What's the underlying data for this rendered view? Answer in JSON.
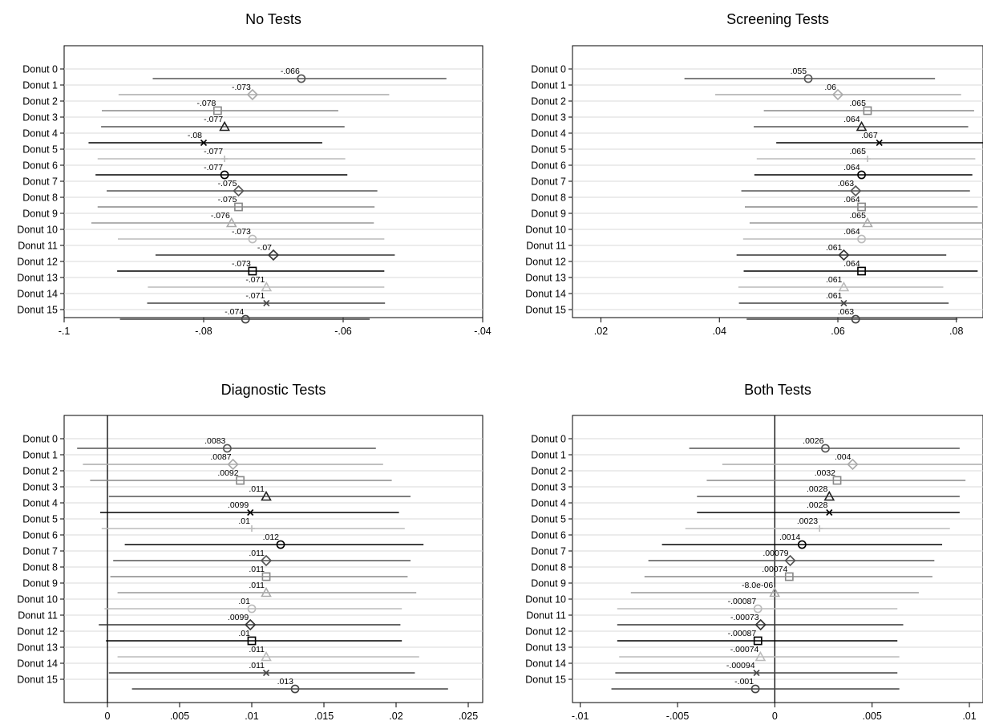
{
  "chart_data": [
    {
      "type": "scatter",
      "title": "No Tests",
      "categories": [
        "Donut 0",
        "Donut 1",
        "Donut 2",
        "Donut 3",
        "Donut 4",
        "Donut 5",
        "Donut 6",
        "Donut 7",
        "Donut 8",
        "Donut 9",
        "Donut 10",
        "Donut 11",
        "Donut 12",
        "Donut 13",
        "Donut 14",
        "Donut 15"
      ],
      "estimates": [
        -0.066,
        -0.073,
        -0.078,
        -0.077,
        -0.08,
        -0.077,
        -0.077,
        -0.075,
        -0.075,
        -0.076,
        -0.073,
        -0.07,
        -0.073,
        -0.071,
        -0.071,
        -0.074
      ],
      "labels": [
        "-.066",
        "-.073",
        "-.078",
        "-.077",
        "-.08",
        "-.077",
        "-.077",
        "-.075",
        "-.075",
        "-.076",
        "-.073",
        "-.07",
        "-.073",
        "-.071",
        "-.071",
        "-.074"
      ],
      "ci_low": [
        -0.0873,
        -0.0922,
        -0.0946,
        -0.0947,
        -0.0965,
        -0.0952,
        -0.0955,
        -0.0939,
        -0.0952,
        -0.0961,
        -0.0923,
        -0.0869,
        -0.0924,
        -0.088,
        -0.0881,
        -0.092
      ],
      "ci_high": [
        -0.0452,
        -0.0534,
        -0.0607,
        -0.0598,
        -0.063,
        -0.0597,
        -0.0594,
        -0.0551,
        -0.0555,
        -0.0556,
        -0.0541,
        -0.0526,
        -0.0541,
        -0.0541,
        -0.054,
        -0.0562
      ],
      "xlim": [
        -0.1,
        -0.04
      ],
      "xticks": [
        -0.1,
        -0.08,
        -0.06,
        -0.04
      ],
      "xtick_labels": [
        "-.1",
        "-.08",
        "-.06",
        "-.04"
      ],
      "zero_line": false
    },
    {
      "type": "scatter",
      "title": "Screening Tests",
      "categories": [
        "Donut 0",
        "Donut 1",
        "Donut 2",
        "Donut 3",
        "Donut 4",
        "Donut 5",
        "Donut 6",
        "Donut 7",
        "Donut 8",
        "Donut 9",
        "Donut 10",
        "Donut 11",
        "Donut 12",
        "Donut 13",
        "Donut 14",
        "Donut 15"
      ],
      "estimates": [
        0.055,
        0.06,
        0.065,
        0.064,
        0.067,
        0.065,
        0.064,
        0.063,
        0.064,
        0.065,
        0.064,
        0.061,
        0.064,
        0.061,
        0.061,
        0.063
      ],
      "labels": [
        ".055",
        ".06",
        ".065",
        ".064",
        ".067",
        ".065",
        ".064",
        ".063",
        ".064",
        ".065",
        ".064",
        ".061",
        ".064",
        ".061",
        ".061",
        ".063"
      ],
      "ci_low": [
        0.0341,
        0.0393,
        0.0475,
        0.0458,
        0.0496,
        0.0463,
        0.0459,
        0.0437,
        0.0443,
        0.0451,
        0.044,
        0.0429,
        0.0441,
        0.0432,
        0.0433,
        0.0446
      ],
      "ci_high": [
        0.0764,
        0.0808,
        0.083,
        0.082,
        0.0845,
        0.0832,
        0.0827,
        0.0823,
        0.0836,
        0.0845,
        0.0845,
        0.0783,
        0.0836,
        0.0778,
        0.0787,
        0.0802
      ],
      "xlim": [
        0.0152,
        0.0845
      ],
      "xticks": [
        0.02,
        0.04,
        0.06,
        0.08
      ],
      "xtick_labels": [
        ".02",
        ".04",
        ".06",
        ".08"
      ],
      "zero_line": false
    },
    {
      "type": "scatter",
      "title": "Diagnostic Tests",
      "categories": [
        "Donut 0",
        "Donut 1",
        "Donut 2",
        "Donut 3",
        "Donut 4",
        "Donut 5",
        "Donut 6",
        "Donut 7",
        "Donut 8",
        "Donut 9",
        "Donut 10",
        "Donut 11",
        "Donut 12",
        "Donut 13",
        "Donut 14",
        "Donut 15"
      ],
      "estimates": [
        0.0083,
        0.0087,
        0.0092,
        0.011,
        0.0099,
        0.01,
        0.012,
        0.011,
        0.011,
        0.011,
        0.01,
        0.0099,
        0.01,
        0.011,
        0.011,
        0.013
      ],
      "labels": [
        ".0083",
        ".0087",
        ".0092",
        ".011",
        ".0099",
        ".01",
        ".012",
        ".011",
        ".011",
        ".011",
        ".01",
        ".0099",
        ".01",
        ".011",
        ".011",
        ".013"
      ],
      "ci_low": [
        -0.0021,
        -0.0017,
        -0.0012,
        0.0001,
        -0.0005,
        -0.0004,
        0.0012,
        0.0004,
        0.0002,
        0.0007,
        -0.0002,
        -0.0006,
        -0.0001,
        0.0007,
        0.0001,
        0.0017
      ],
      "ci_high": [
        0.0186,
        0.0191,
        0.0197,
        0.021,
        0.0202,
        0.0206,
        0.0219,
        0.021,
        0.0208,
        0.0214,
        0.0204,
        0.0203,
        0.0204,
        0.0216,
        0.0213,
        0.0236
      ],
      "xlim": [
        -0.003,
        0.026
      ],
      "xticks": [
        0,
        0.005,
        0.01,
        0.015,
        0.02,
        0.025
      ],
      "xtick_labels": [
        "0",
        ".005",
        ".01",
        ".015",
        ".02",
        ".025"
      ],
      "zero_line": true
    },
    {
      "type": "scatter",
      "title": "Both Tests",
      "categories": [
        "Donut 0",
        "Donut 1",
        "Donut 2",
        "Donut 3",
        "Donut 4",
        "Donut 5",
        "Donut 6",
        "Donut 7",
        "Donut 8",
        "Donut 9",
        "Donut 10",
        "Donut 11",
        "Donut 12",
        "Donut 13",
        "Donut 14",
        "Donut 15"
      ],
      "estimates": [
        0.0026,
        0.004,
        0.0032,
        0.0028,
        0.0028,
        0.0023,
        0.0014,
        0.00079,
        0.00074,
        -8e-06,
        -0.00087,
        -0.00073,
        -0.00087,
        -0.00074,
        -0.00094,
        -0.001
      ],
      "labels": [
        ".0026",
        ".004",
        ".0032",
        ".0028",
        ".0028",
        ".0023",
        ".0014",
        ".00079",
        ".00074",
        "-8.0e-06",
        "-.00087",
        "-.00073",
        "-.00087",
        "-.00074",
        "-.00094",
        "-.001"
      ],
      "ci_low": [
        -0.0044,
        -0.0027,
        -0.0035,
        -0.004,
        -0.004,
        -0.0046,
        -0.0058,
        -0.0065,
        -0.0067,
        -0.0074,
        -0.0081,
        -0.0081,
        -0.0081,
        -0.008,
        -0.0082,
        -0.0084
      ],
      "ci_high": [
        0.0095,
        0.0107,
        0.0098,
        0.0095,
        0.0095,
        0.009,
        0.0086,
        0.0082,
        0.0081,
        0.0074,
        0.0063,
        0.0066,
        0.0063,
        0.0064,
        0.0063,
        0.0064
      ],
      "xlim": [
        -0.0104,
        0.0107
      ],
      "xticks": [
        -0.01,
        -0.005,
        0,
        0.005,
        0.01
      ],
      "xtick_labels": [
        "-.01",
        "-.005",
        "0",
        ".005",
        ".01"
      ],
      "zero_line": true
    }
  ],
  "styles": [
    {
      "marker": "circle",
      "color": "#555555",
      "line": "#555555"
    },
    {
      "marker": "diamond",
      "color": "#aaaaaa",
      "line": "#aaaaaa"
    },
    {
      "marker": "square",
      "color": "#888888",
      "line": "#888888"
    },
    {
      "marker": "triangle",
      "color": "#222222",
      "line": "#555555"
    },
    {
      "marker": "x",
      "color": "#000000",
      "line": "#000000"
    },
    {
      "marker": "plus",
      "color": "#bbbbbb",
      "line": "#bbbbbb"
    },
    {
      "marker": "circle",
      "color": "#000000",
      "line": "#000000"
    },
    {
      "marker": "diamond",
      "color": "#555555",
      "line": "#555555"
    },
    {
      "marker": "square",
      "color": "#888888",
      "line": "#888888"
    },
    {
      "marker": "triangle",
      "color": "#aaaaaa",
      "line": "#999999"
    },
    {
      "marker": "circle",
      "color": "#bbbbbb",
      "line": "#bbbbbb"
    },
    {
      "marker": "diamond",
      "color": "#333333",
      "line": "#333333"
    },
    {
      "marker": "square",
      "color": "#000000",
      "line": "#000000"
    },
    {
      "marker": "triangle",
      "color": "#bbbbbb",
      "line": "#bbbbbb"
    },
    {
      "marker": "x",
      "color": "#444444",
      "line": "#444444"
    },
    {
      "marker": "circle",
      "color": "#444444",
      "line": "#444444"
    }
  ]
}
